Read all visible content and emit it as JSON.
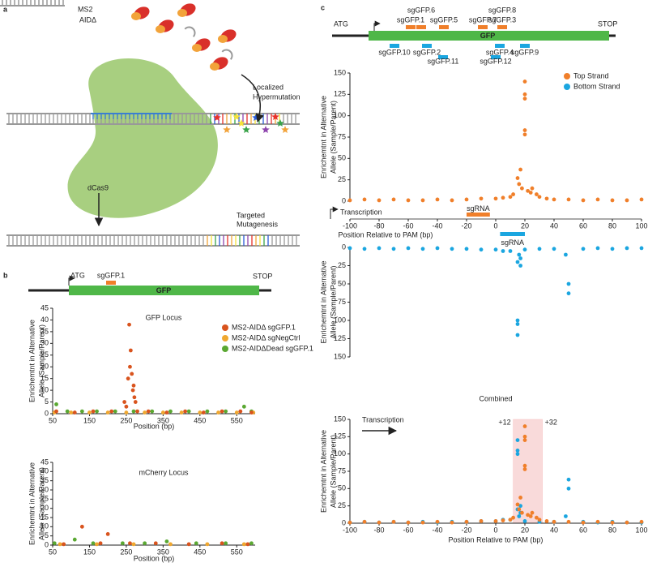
{
  "panel_labels": [
    "a",
    "b",
    "c"
  ],
  "schematic": {
    "ms2": "MS2",
    "aid": "AIDΔ",
    "hypermutation": [
      "Localized",
      "Hypermutation"
    ],
    "dcas9": "dCas9",
    "mutagenesis": [
      "Targeted",
      "Mutagenesis"
    ]
  },
  "gene_b": {
    "start": "ATG",
    "gene": "GFP",
    "stop": "STOP",
    "guides": [
      "sgGFP.1"
    ]
  },
  "gene_c": {
    "start": "ATG",
    "gene": "GFP",
    "stop": "STOP",
    "top_guides": [
      "sgGFP.6",
      "sgGFP.1",
      "sgGFP.5",
      "sgGFP.7",
      "sgGFP.8",
      "sgGFP.3"
    ],
    "bottom_guides": [
      "sgGFP.10",
      "sgGFP.2",
      "sgGFP.11",
      "sgGFP.4",
      "sgGFP.12",
      "sgGFP.9"
    ]
  },
  "chart_data": [
    {
      "type": "scatter",
      "title": "GFP Locus",
      "x_label": "Position (bp)",
      "y_label": [
        "Enrichemtnt in Alternative",
        "Allele (Sample/Parent)"
      ],
      "xlim": [
        50,
        600
      ],
      "ylim": [
        0,
        45
      ],
      "xticks": [
        50,
        150,
        250,
        350,
        450,
        550
      ],
      "yticks": [
        0,
        5,
        10,
        15,
        20,
        25,
        30,
        35,
        40,
        45
      ],
      "legend": "upper right",
      "series": [
        {
          "name": "MS2-AIDΔ sgGFP.1",
          "color": "#d9541e",
          "x": [
            60,
            110,
            160,
            210,
            245,
            250,
            255,
            258,
            260,
            262,
            265,
            268,
            270,
            272,
            275,
            280,
            310,
            360,
            410,
            460,
            510,
            560,
            590
          ],
          "values": [
            1,
            0.5,
            1,
            1,
            5,
            3,
            15,
            38,
            20,
            27,
            17,
            10,
            12,
            7,
            5,
            1,
            1,
            0.5,
            1,
            0.5,
            1,
            1,
            0.5
          ]
        },
        {
          "name": "MS2-AIDΔ sgNegCtrl",
          "color": "#f0a830",
          "x": [
            55,
            100,
            150,
            200,
            250,
            300,
            350,
            400,
            450,
            500,
            550,
            595
          ],
          "values": [
            0.5,
            0.5,
            0.5,
            0.5,
            0.5,
            0.5,
            0.5,
            0.5,
            0.5,
            0.5,
            0.5,
            0.5
          ]
        },
        {
          "name": "MS2-AIDΔDead sgGFP.1",
          "color": "#5aa832",
          "x": [
            60,
            90,
            130,
            170,
            220,
            270,
            320,
            370,
            420,
            470,
            520,
            570,
            590
          ],
          "values": [
            4,
            1,
            1,
            1,
            1,
            1,
            1,
            1,
            1,
            1,
            1,
            3,
            1
          ]
        }
      ]
    },
    {
      "type": "scatter",
      "title": "mCherry Locus",
      "x_label": "Position (bp)",
      "y_label": [
        "Enrichemtnt in Alternative",
        "Allele (Sample/Parent)"
      ],
      "xlim": [
        50,
        600
      ],
      "ylim": [
        0,
        45
      ],
      "xticks": [
        50,
        150,
        250,
        350,
        450,
        550
      ],
      "yticks": [
        0,
        5,
        10,
        15,
        20,
        25,
        30,
        35,
        40,
        45
      ],
      "series": [
        {
          "color": "#d9541e",
          "x": [
            80,
            130,
            180,
            200,
            260,
            330,
            420,
            510,
            580
          ],
          "values": [
            0.5,
            10,
            1,
            6,
            1,
            1,
            0.5,
            1,
            0.5
          ]
        },
        {
          "color": "#f0a830",
          "x": [
            70,
            170,
            270,
            370,
            470,
            570
          ],
          "values": [
            0.5,
            0.5,
            0.5,
            0.5,
            0.5,
            0.5
          ]
        },
        {
          "color": "#5aa832",
          "x": [
            55,
            110,
            160,
            240,
            300,
            360,
            440,
            520,
            590
          ],
          "values": [
            1,
            3,
            1,
            1,
            1,
            2,
            1,
            1,
            1
          ]
        }
      ]
    },
    {
      "type": "scatter",
      "x_label": "Position Relative to PAM (bp)",
      "y_label": [
        "Enrichemtnt in Alternative",
        "Allele (Sample/Parent)"
      ],
      "xlim": [
        -100,
        100
      ],
      "ylim": [
        0,
        150
      ],
      "xticks": [
        -100,
        -80,
        -60,
        -40,
        -20,
        0,
        20,
        40,
        60,
        80,
        100
      ],
      "yticks": [
        0,
        25,
        50,
        75,
        100,
        125,
        150
      ],
      "legend": "upper right",
      "transcription": "Transcription",
      "sgrna": {
        "label": "sgRNA",
        "x": [
          -20,
          -4
        ]
      },
      "series": [
        {
          "name": "Top Strand",
          "color": "#f07f2a",
          "x": [
            -100,
            -90,
            -80,
            -70,
            -60,
            -50,
            -40,
            -30,
            -20,
            -10,
            0,
            5,
            10,
            12,
            15,
            16,
            17,
            18,
            20,
            20,
            20,
            20,
            20,
            22,
            24,
            25,
            28,
            30,
            35,
            40,
            50,
            60,
            70,
            80,
            90,
            100
          ],
          "values": [
            1,
            2,
            1,
            2,
            1,
            1,
            2,
            1,
            2,
            3,
            3,
            4,
            5,
            8,
            27,
            20,
            37,
            15,
            140,
            125,
            120,
            83,
            78,
            12,
            10,
            15,
            8,
            5,
            3,
            2,
            2,
            1,
            2,
            1,
            1,
            2
          ]
        }
      ]
    },
    {
      "type": "scatter",
      "y_label": [
        "Enrichemtnt in Alternative",
        "Allele (Sample/Parent)"
      ],
      "xlim": [
        -100,
        100
      ],
      "ylim": [
        0,
        150
      ],
      "yticks": [
        0,
        25,
        50,
        75,
        100,
        125,
        150
      ],
      "y_inverted": true,
      "sgrna": {
        "label": "sgRNA",
        "x": [
          3,
          20
        ]
      },
      "series": [
        {
          "name": "Bottom Strand",
          "color": "#1ba6e0",
          "x": [
            -100,
            -90,
            -80,
            -70,
            -60,
            -50,
            -40,
            -30,
            -20,
            -10,
            0,
            5,
            10,
            15,
            15,
            15,
            15,
            16,
            17,
            17,
            20,
            30,
            40,
            48,
            50,
            50,
            60,
            70,
            80,
            90,
            100
          ],
          "values": [
            1,
            2,
            1,
            2,
            1,
            2,
            1,
            2,
            2,
            3,
            3,
            5,
            5,
            100,
            105,
            120,
            20,
            10,
            25,
            15,
            3,
            2,
            2,
            10,
            50,
            63,
            2,
            1,
            2,
            1,
            1
          ]
        }
      ]
    },
    {
      "type": "scatter",
      "title": "Combined",
      "x_label": "Position Relative to PAM (bp)",
      "y_label": [
        "Enrichemtnt in Alternative",
        "Allele (Sample/Parent)"
      ],
      "xlim": [
        -100,
        100
      ],
      "ylim": [
        0,
        150
      ],
      "xticks": [
        -100,
        -80,
        -60,
        -40,
        -20,
        0,
        20,
        40,
        60,
        80,
        100
      ],
      "yticks": [
        0,
        25,
        50,
        75,
        100,
        125,
        150
      ],
      "transcription": "Transcription",
      "highlight": [
        {
          "value": 12,
          "label": "+12"
        },
        {
          "value": 32,
          "label": "+32"
        }
      ],
      "series": [
        {
          "color": "#f07f2a",
          "x": [
            -100,
            -90,
            -80,
            -70,
            -60,
            -50,
            -40,
            -30,
            -20,
            -10,
            0,
            5,
            10,
            12,
            15,
            16,
            17,
            18,
            20,
            20,
            20,
            20,
            20,
            22,
            24,
            25,
            28,
            30,
            35,
            40,
            50,
            60,
            70,
            80,
            90,
            100
          ],
          "values": [
            1,
            2,
            1,
            2,
            1,
            1,
            2,
            1,
            2,
            3,
            3,
            4,
            5,
            8,
            27,
            20,
            37,
            15,
            140,
            125,
            120,
            83,
            78,
            12,
            10,
            15,
            8,
            5,
            3,
            2,
            2,
            1,
            2,
            1,
            1,
            2
          ]
        },
        {
          "color": "#1ba6e0",
          "x": [
            -100,
            -90,
            -80,
            -70,
            -60,
            -50,
            -40,
            -30,
            -20,
            -10,
            0,
            5,
            10,
            15,
            15,
            15,
            15,
            16,
            17,
            17,
            20,
            30,
            40,
            48,
            50,
            50,
            60,
            70,
            80,
            90,
            100
          ],
          "values": [
            1,
            2,
            1,
            2,
            1,
            2,
            1,
            2,
            2,
            3,
            3,
            5,
            5,
            100,
            105,
            120,
            20,
            10,
            25,
            15,
            3,
            2,
            2,
            10,
            50,
            63,
            2,
            1,
            2,
            1,
            1
          ]
        }
      ]
    }
  ]
}
